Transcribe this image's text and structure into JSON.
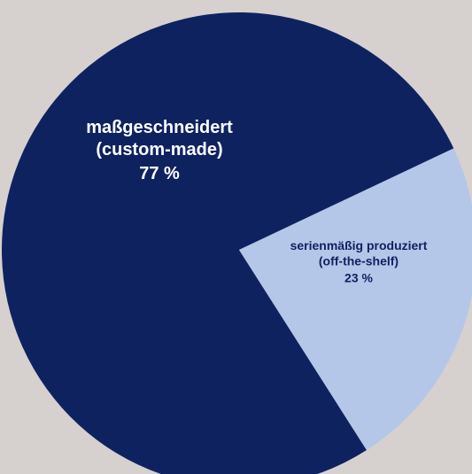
{
  "chart_data": {
    "type": "pie",
    "categories": [
      "maßgeschneidert (custom-made)",
      "serienmäßig produziert (off-the-shelf)"
    ],
    "values": [
      77,
      23
    ],
    "value_labels": [
      "77 %",
      "23 %"
    ],
    "colors": [
      "#0f2260",
      "#b5c7e8"
    ]
  }
}
